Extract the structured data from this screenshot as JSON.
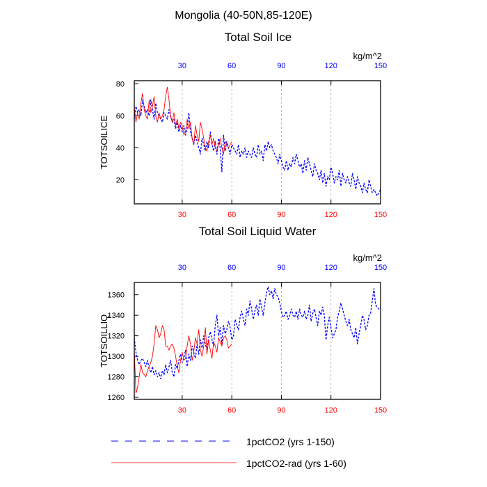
{
  "figure_title": "Mongolia (40-50N,85-120E)",
  "colors": {
    "series_a": "#0000ff",
    "series_b": "#ff0000",
    "axis": "#000000",
    "grid": "#aaaaaa"
  },
  "legend": [
    {
      "label": "1pctCO2 (yrs 1-150)",
      "color": "#0000ff",
      "style": "dashed"
    },
    {
      "label": "1pctCO2-rad (yrs 1-60)",
      "color": "#ff0000",
      "style": "solid"
    }
  ],
  "chart_data": [
    {
      "type": "line",
      "title": "Total Soil Ice",
      "ylabel": "TOTSOILICE",
      "units": "kg/m^2",
      "xlim": [
        1,
        150
      ],
      "ylim": [
        5,
        82
      ],
      "xticks": [
        30,
        60,
        90,
        120,
        150
      ],
      "yticks": [
        20,
        40,
        60,
        80
      ],
      "grid_x": true,
      "series": [
        {
          "name": "1pctCO2 (yrs 1-150)",
          "x_start": 1,
          "values": [
            58,
            66,
            62,
            64,
            60,
            70,
            66,
            62,
            64,
            60,
            70,
            64,
            58,
            68,
            62,
            60,
            58,
            56,
            62,
            60,
            58,
            64,
            60,
            56,
            58,
            52,
            56,
            50,
            54,
            50,
            54,
            48,
            52,
            62,
            50,
            46,
            42,
            48,
            44,
            40,
            36,
            46,
            42,
            38,
            44,
            40,
            50,
            42,
            38,
            44,
            36,
            46,
            40,
            25,
            48,
            38,
            44,
            40,
            36,
            42,
            40,
            38,
            36,
            42,
            34,
            38,
            36,
            40,
            34,
            38,
            36,
            34,
            40,
            36,
            34,
            42,
            36,
            38,
            32,
            42,
            38,
            44,
            40,
            42,
            38,
            36,
            34,
            30,
            36,
            32,
            28,
            26,
            32,
            26,
            30,
            28,
            34,
            30,
            36,
            32,
            28,
            30,
            24,
            32,
            26,
            34,
            30,
            26,
            22,
            30,
            26,
            24,
            20,
            26,
            18,
            24,
            16,
            22,
            20,
            28,
            24,
            18,
            22,
            20,
            26,
            16,
            24,
            20,
            18,
            22,
            18,
            16,
            24,
            20,
            14,
            22,
            18,
            16,
            12,
            18,
            14,
            12,
            20,
            16,
            12,
            14,
            12,
            10,
            12,
            14
          ]
        },
        {
          "name": "1pctCO2-rad (yrs 1-60)",
          "x_start": 1,
          "values": [
            66,
            56,
            62,
            58,
            68,
            74,
            64,
            60,
            58,
            70,
            62,
            66,
            72,
            60,
            56,
            62,
            58,
            60,
            64,
            72,
            78,
            70,
            60,
            56,
            62,
            54,
            58,
            52,
            56,
            54,
            48,
            50,
            58,
            52,
            56,
            46,
            42,
            54,
            48,
            44,
            56,
            52,
            46,
            40,
            38,
            44,
            48,
            42,
            46,
            40,
            38,
            42,
            46,
            40,
            36,
            44,
            42,
            40,
            42,
            44
          ]
        }
      ]
    },
    {
      "type": "line",
      "title": "Total Soil Liquid Water",
      "ylabel": "TOTSOILLIQ",
      "units": "kg/m^2",
      "xlim": [
        1,
        150
      ],
      "ylim": [
        1258,
        1372
      ],
      "xticks": [
        30,
        60,
        90,
        120,
        150
      ],
      "yticks": [
        1260,
        1280,
        1300,
        1320,
        1340,
        1360
      ],
      "grid_x": true,
      "series": [
        {
          "name": "1pctCO2 (yrs 1-150)",
          "x_start": 1,
          "values": [
            1318,
            1304,
            1296,
            1292,
            1296,
            1298,
            1294,
            1290,
            1296,
            1288,
            1284,
            1290,
            1282,
            1286,
            1280,
            1284,
            1278,
            1286,
            1282,
            1292,
            1284,
            1290,
            1296,
            1284,
            1280,
            1292,
            1288,
            1296,
            1302,
            1294,
            1298,
            1306,
            1290,
            1302,
            1296,
            1310,
            1304,
            1298,
            1312,
            1302,
            1316,
            1308,
            1320,
            1312,
            1306,
            1318,
            1324,
            1316,
            1310,
            1330,
            1340,
            1320,
            1328,
            1312,
            1330,
            1322,
            1326,
            1334,
            1328,
            1316,
            1320,
            1336,
            1330,
            1326,
            1338,
            1344,
            1336,
            1330,
            1346,
            1340,
            1354,
            1346,
            1336,
            1344,
            1350,
            1340,
            1356,
            1348,
            1340,
            1352,
            1362,
            1368,
            1360,
            1364,
            1356,
            1366,
            1360,
            1358,
            1352,
            1344,
            1338,
            1340,
            1344,
            1336,
            1340,
            1346,
            1340,
            1338,
            1344,
            1336,
            1346,
            1340,
            1338,
            1344,
            1336,
            1340,
            1350,
            1334,
            1342,
            1346,
            1338,
            1330,
            1344,
            1340,
            1348,
            1340,
            1316,
            1330,
            1338,
            1328,
            1318,
            1322,
            1326,
            1338,
            1344,
            1352,
            1346,
            1340,
            1334,
            1330,
            1336,
            1326,
            1322,
            1318,
            1328,
            1312,
            1322,
            1330,
            1340,
            1336,
            1326,
            1330,
            1340,
            1342,
            1354,
            1366,
            1350,
            1348,
            1346,
            1348
          ]
        },
        {
          "name": "1pctCO2-rad (yrs 1-60)",
          "x_start": 1,
          "values": [
            1306,
            1264,
            1270,
            1280,
            1292,
            1284,
            1282,
            1280,
            1286,
            1290,
            1294,
            1300,
            1312,
            1330,
            1326,
            1318,
            1322,
            1330,
            1326,
            1310,
            1310,
            1306,
            1310,
            1312,
            1308,
            1300,
            1290,
            1284,
            1296,
            1304,
            1296,
            1298,
            1310,
            1320,
            1312,
            1296,
            1304,
            1318,
            1312,
            1326,
            1306,
            1300,
            1310,
            1328,
            1302,
            1316,
            1306,
            1298,
            1314,
            1310,
            1304,
            1318,
            1314,
            1310,
            1318,
            1320,
            1316,
            1308,
            1310,
            1312
          ]
        }
      ]
    }
  ]
}
